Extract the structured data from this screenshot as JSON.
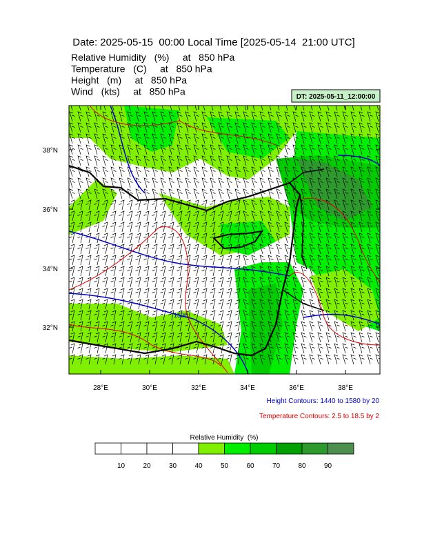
{
  "header": {
    "title": "Date: 2025-05-15  00:00 Local Time [2025-05-14  21:00 UTC]",
    "fields": [
      "Relative Humidity   (%)     at   850 hPa",
      "Temperature   (C)     at   850 hPa",
      "Height   (m)     at   850 hPa",
      "Wind   (kts)     at   850 hPa"
    ],
    "dt_box": "DT: 2025-05-11_12:00:00"
  },
  "map": {
    "lat_labels": [
      "38°N",
      "36°N",
      "34°N",
      "32°N"
    ],
    "lon_labels": [
      "28°E",
      "30°E",
      "32°E",
      "34°E",
      "36°E",
      "38°E"
    ],
    "contour_label": "1500"
  },
  "notes": {
    "height": "Height Contours: 1440 to 1580 by 20",
    "temperature": "Temperature Contours: 2.5 to 18.5 by 2"
  },
  "colorbar": {
    "title": "Relative Humidity  (%)",
    "labels": [
      10,
      20,
      30,
      40,
      50,
      60,
      70,
      80,
      90
    ],
    "colors": [
      "#ffffff",
      "#ffffff",
      "#ffffff",
      "#ffffff",
      "#80f000",
      "#00ee00",
      "#00cc00",
      "#00a000",
      "#2e9a2e",
      "#4d8f4d"
    ]
  }
}
